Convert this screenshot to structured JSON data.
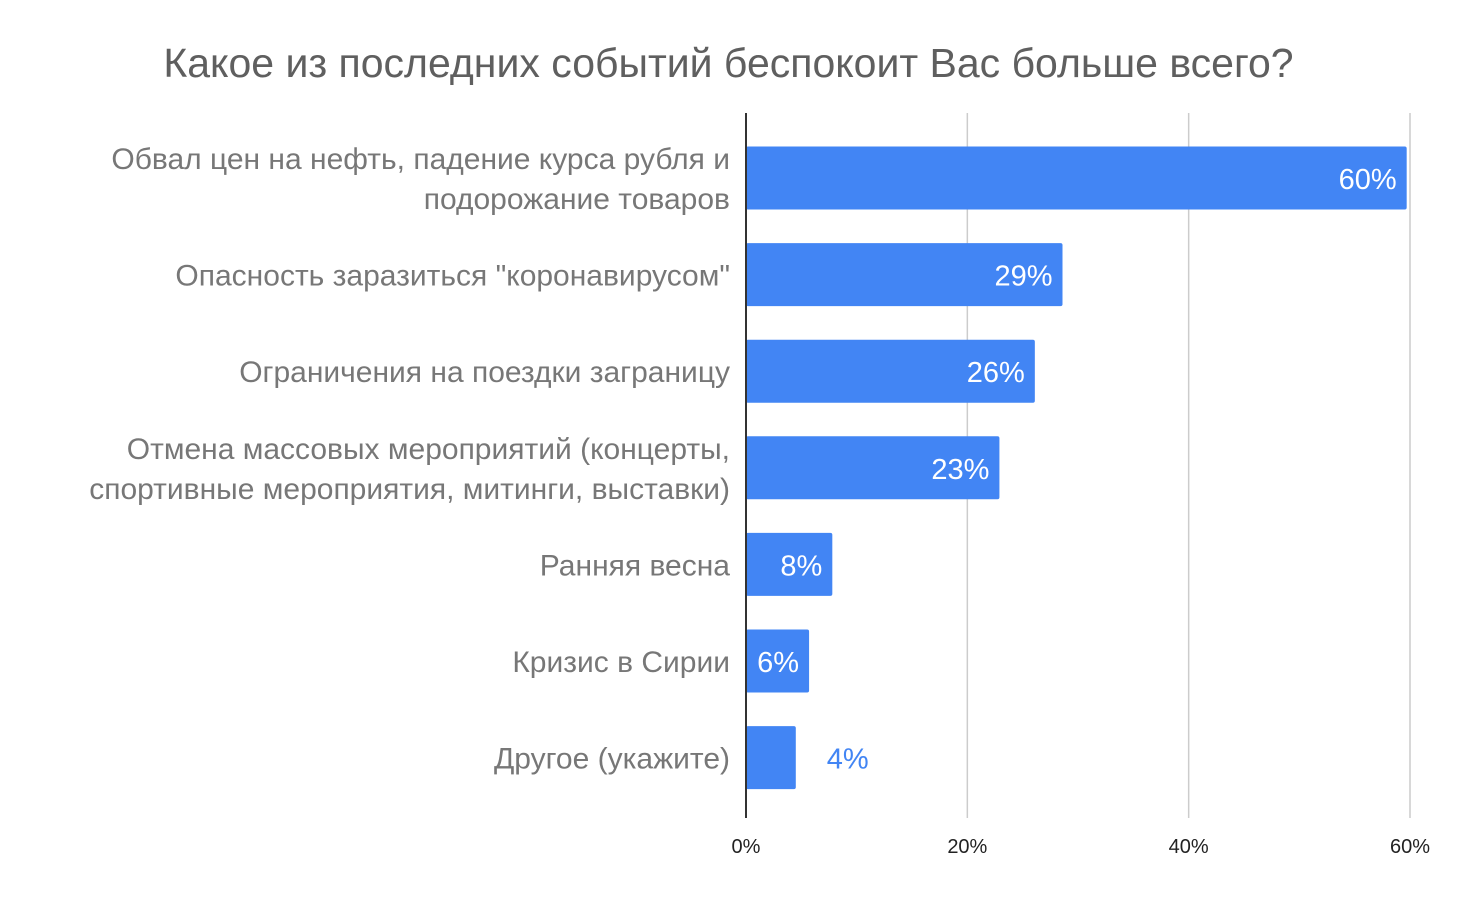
{
  "chart_data": {
    "type": "bar",
    "orientation": "horizontal",
    "title": "Какое из последних событий беспокоит Вас больше всего?",
    "xlabel": "",
    "ylabel": "",
    "xlim": [
      0,
      60
    ],
    "x_ticks": [
      "0%",
      "20%",
      "40%",
      "60%"
    ],
    "x_tick_values": [
      0,
      20,
      40,
      60
    ],
    "grid": "vertical",
    "legend": "none",
    "categories": [
      [
        "Обвал цен на нефть, падение курса рубля и",
        "подорожание товаров"
      ],
      [
        "Опасность заразиться \"коронавирусом\""
      ],
      [
        "Ограничения на поездки заграницу"
      ],
      [
        "Отмена массовых мероприятий (концерты,",
        "спортивные мероприятия, митинги, выставки)"
      ],
      [
        "Ранняя весна"
      ],
      [
        "Кризис в Сирии"
      ],
      [
        "Другое (укажите)"
      ]
    ],
    "values": [
      59.7,
      28.6,
      26.1,
      22.9,
      7.8,
      5.7,
      4.5
    ],
    "value_labels": [
      "60%",
      "29%",
      "26%",
      "23%",
      "8%",
      "6%",
      "4%"
    ],
    "bar_color": "#4285f4",
    "label_inside_color": "#ffffff",
    "label_outside_color": "#4285f4"
  }
}
